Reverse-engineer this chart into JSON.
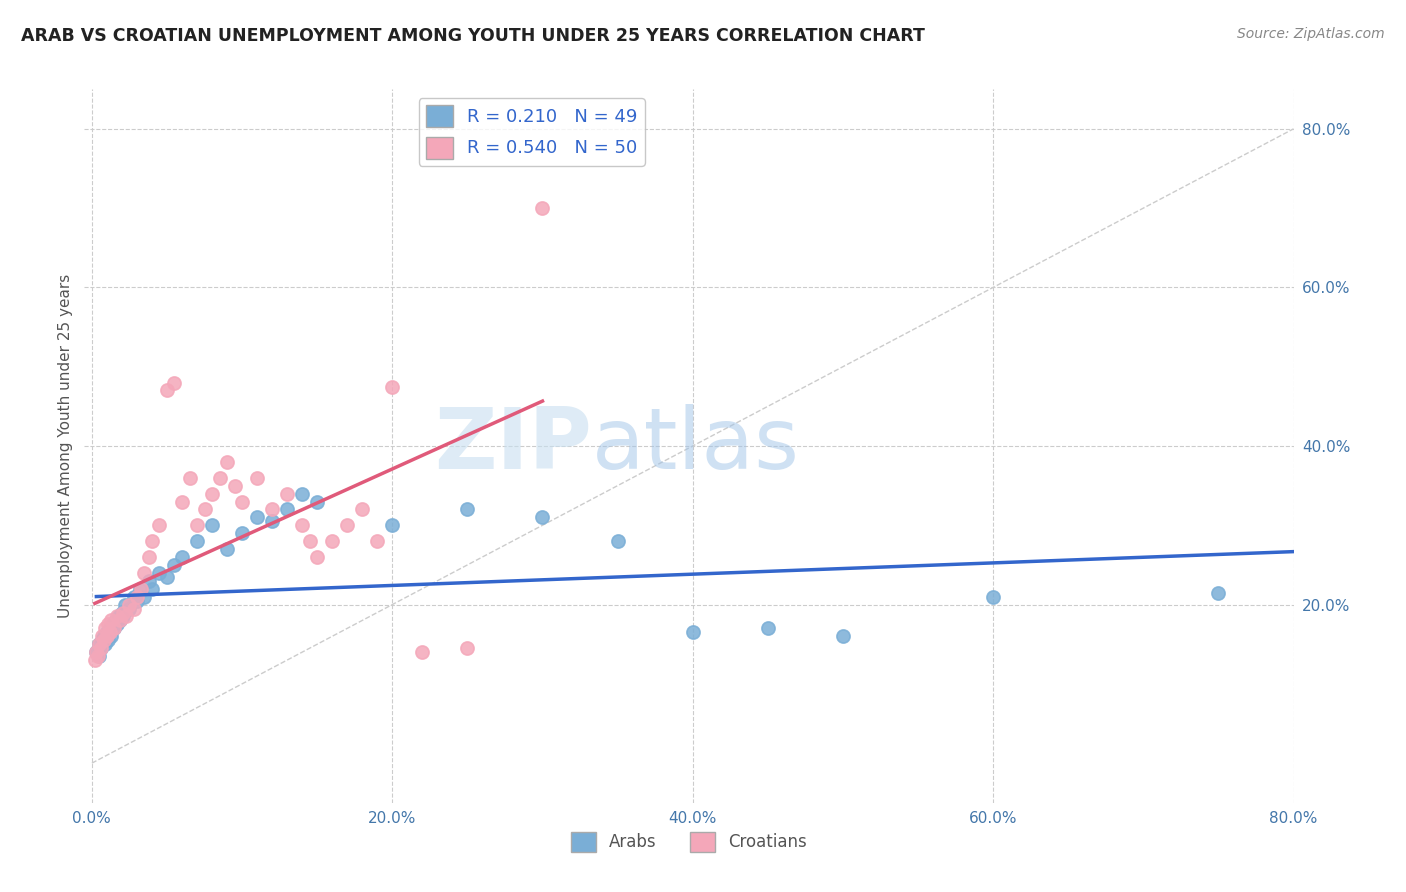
{
  "title": "ARAB VS CROATIAN UNEMPLOYMENT AMONG YOUTH UNDER 25 YEARS CORRELATION CHART",
  "source": "Source: ZipAtlas.com",
  "ylabel": "Unemployment Among Youth under 25 years",
  "xlim": [
    -0.5,
    80.0
  ],
  "ylim": [
    -5.0,
    85.0
  ],
  "xticks": [
    0.0,
    20.0,
    40.0,
    60.0,
    80.0
  ],
  "yticks": [
    20.0,
    40.0,
    60.0,
    80.0
  ],
  "xticklabels": [
    "0.0%",
    "20.0%",
    "40.0%",
    "60.0%",
    "80.0%"
  ],
  "yticklabels": [
    "20.0%",
    "40.0%",
    "60.0%",
    "80.0%"
  ],
  "arab_color": "#7aaed6",
  "arab_edge_color": "#5b9bd5",
  "croatian_color": "#f4a7b9",
  "croatian_edge_color": "#e05a7a",
  "arab_line_color": "#3366cc",
  "croatian_line_color": "#e05a7a",
  "arab_R": 0.21,
  "arab_N": 49,
  "croatian_R": 0.54,
  "croatian_N": 50,
  "arab_x": [
    0.3,
    0.5,
    0.5,
    0.6,
    0.7,
    0.8,
    0.9,
    1.0,
    1.1,
    1.2,
    1.3,
    1.4,
    1.5,
    1.6,
    1.7,
    1.8,
    1.9,
    2.0,
    2.1,
    2.2,
    2.5,
    2.8,
    3.0,
    3.2,
    3.5,
    3.8,
    4.0,
    4.5,
    5.0,
    5.5,
    6.0,
    7.0,
    8.0,
    9.0,
    10.0,
    11.0,
    12.0,
    13.0,
    14.0,
    15.0,
    20.0,
    25.0,
    30.0,
    35.0,
    40.0,
    45.0,
    50.0,
    60.0,
    75.0
  ],
  "arab_y": [
    14.0,
    13.5,
    15.0,
    14.5,
    15.5,
    16.0,
    15.0,
    16.5,
    15.5,
    17.0,
    16.0,
    17.5,
    17.0,
    18.0,
    17.5,
    18.5,
    18.0,
    19.0,
    18.5,
    20.0,
    19.5,
    21.0,
    20.5,
    22.0,
    21.0,
    23.0,
    22.0,
    24.0,
    23.5,
    25.0,
    26.0,
    28.0,
    30.0,
    27.0,
    29.0,
    31.0,
    30.5,
    32.0,
    34.0,
    33.0,
    30.0,
    32.0,
    31.0,
    28.0,
    16.5,
    17.0,
    16.0,
    21.0,
    21.5
  ],
  "croatian_x": [
    0.2,
    0.3,
    0.4,
    0.5,
    0.6,
    0.7,
    0.8,
    0.9,
    1.0,
    1.1,
    1.2,
    1.3,
    1.5,
    1.7,
    1.9,
    2.1,
    2.3,
    2.5,
    2.8,
    3.0,
    3.3,
    3.5,
    3.8,
    4.0,
    4.5,
    5.0,
    5.5,
    6.0,
    6.5,
    7.0,
    7.5,
    8.0,
    8.5,
    9.0,
    9.5,
    10.0,
    11.0,
    12.0,
    13.0,
    14.0,
    14.5,
    15.0,
    16.0,
    17.0,
    18.0,
    19.0,
    20.0,
    22.0,
    25.0,
    30.0
  ],
  "croatian_y": [
    13.0,
    14.0,
    13.5,
    15.0,
    14.5,
    16.0,
    15.5,
    17.0,
    16.0,
    17.5,
    16.5,
    18.0,
    17.0,
    18.5,
    18.0,
    19.0,
    18.5,
    20.0,
    19.5,
    21.0,
    22.0,
    24.0,
    26.0,
    28.0,
    30.0,
    47.0,
    48.0,
    33.0,
    36.0,
    30.0,
    32.0,
    34.0,
    36.0,
    38.0,
    35.0,
    33.0,
    36.0,
    32.0,
    34.0,
    30.0,
    28.0,
    26.0,
    28.0,
    30.0,
    32.0,
    28.0,
    47.5,
    14.0,
    14.5,
    70.0
  ],
  "watermark_zip": "ZIP",
  "watermark_atlas": "atlas"
}
